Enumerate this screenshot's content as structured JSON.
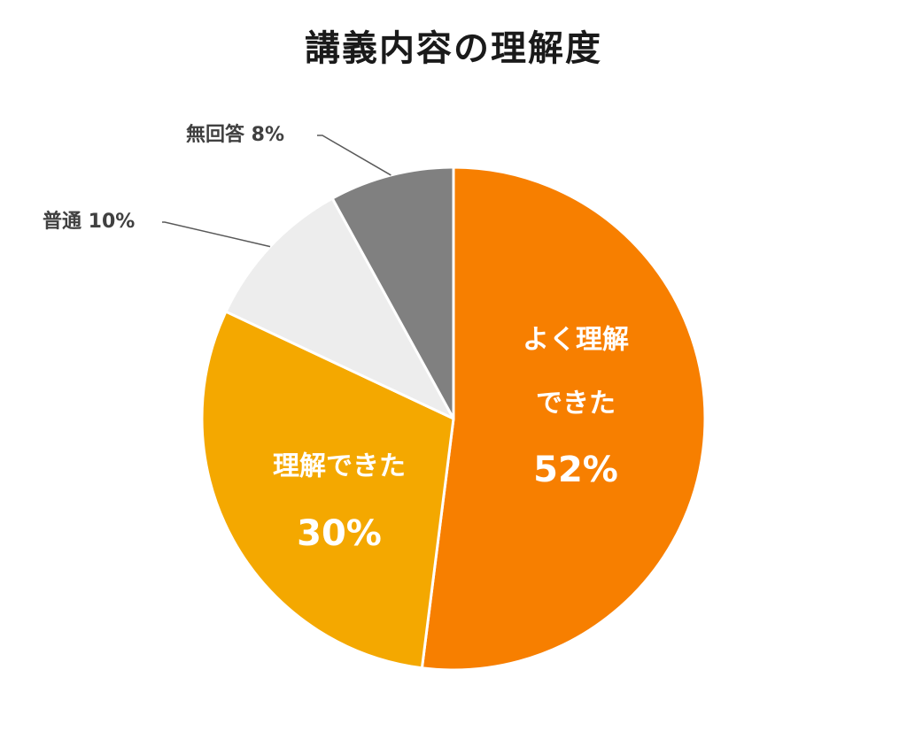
{
  "chart_data": {
    "type": "pie",
    "title": "講義内容の理解度",
    "slices": [
      {
        "label": "よく理解できた",
        "label_lines": [
          "よく理解",
          "できた"
        ],
        "value": 52,
        "percent_label": "52%",
        "color": "#F77F00",
        "label_position": "inside"
      },
      {
        "label": "理解できた",
        "label_lines": [
          "理解できた"
        ],
        "value": 30,
        "percent_label": "30%",
        "color": "#F4A800",
        "label_position": "inside"
      },
      {
        "label": "普通",
        "value": 10,
        "percent_label": "10%",
        "color": "#EDEDED",
        "label_position": "outside"
      },
      {
        "label": "無回答",
        "value": 8,
        "percent_label": "8%",
        "color": "#808080",
        "label_position": "outside"
      }
    ],
    "start_angle": "12 o'clock",
    "direction": "clockwise",
    "legend": "none"
  }
}
